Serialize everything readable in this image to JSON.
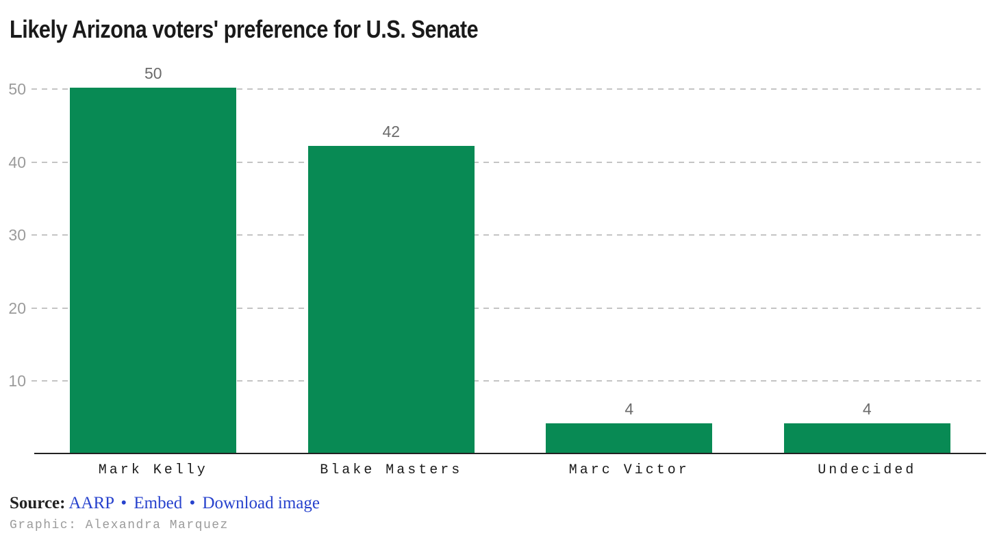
{
  "title": "Likely Arizona voters' preference for U.S. Senate",
  "chart_data": {
    "type": "bar",
    "title": "Likely Arizona voters' preference for U.S. Senate",
    "categories": [
      "Mark Kelly",
      "Blake Masters",
      "Marc Victor",
      "Undecided"
    ],
    "values": [
      50,
      42,
      4,
      4
    ],
    "bar_value_labels": [
      "50",
      "42",
      "4",
      "4"
    ],
    "xlabel": "",
    "ylabel": "",
    "ylim": [
      0,
      50
    ],
    "yticks": [
      50,
      40,
      30,
      20,
      10
    ],
    "grid": "horizontal-dashed",
    "legend": "none",
    "bar_color": "#088a54"
  },
  "colors": {
    "bar": "#088a54",
    "gridline": "#c4c4c4",
    "axis_line": "#222222",
    "tick_label": "#9b9b9b",
    "value_label": "#6b6b6b",
    "category_label": "#1a1a1a",
    "link": "#2742cd",
    "credit": "#9b9b9b",
    "title": "#1a1a1a",
    "background": "#ffffff"
  },
  "footer": {
    "source_label": "Source:",
    "source_link": "AARP",
    "separator": "•",
    "embed_link": "Embed",
    "download_link": "Download image",
    "credit": "Graphic: Alexandra Marquez"
  }
}
